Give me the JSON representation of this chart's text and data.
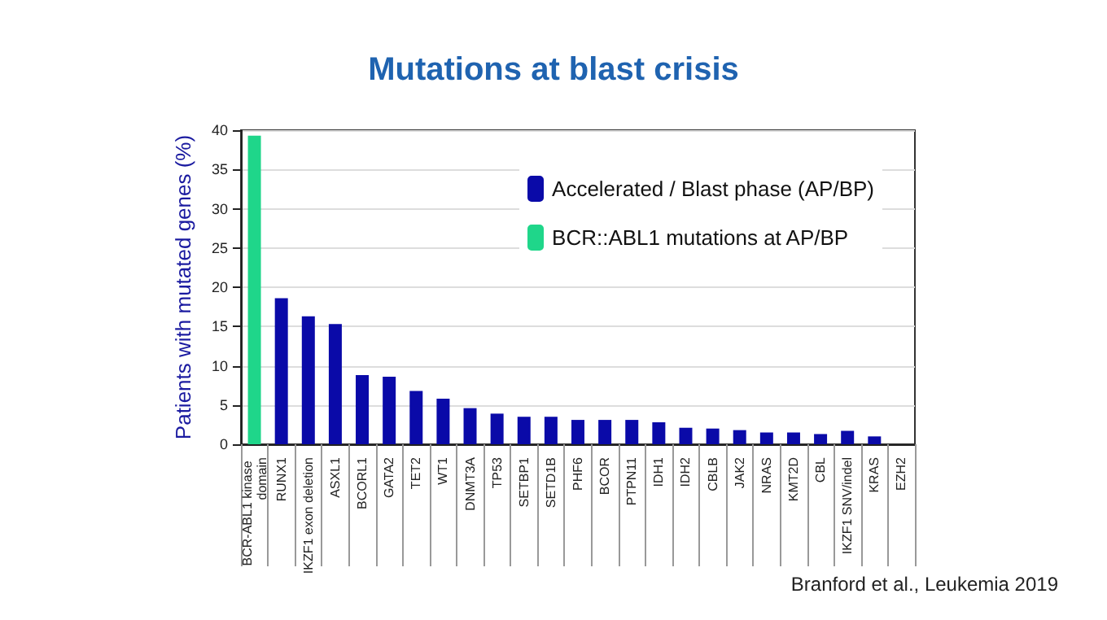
{
  "chart_data": {
    "type": "bar",
    "title": "Mutations at blast crisis",
    "ylabel": "Patients with mutated genes (%)",
    "categories": [
      "BCR-ABL1 kinase domain",
      "RUNX1",
      "IKZF1 exon deletion",
      "ASXL1",
      "BCORL1",
      "GATA2",
      "TET2",
      "WT1",
      "DNMT3A",
      "TP53",
      "SETBP1",
      "SETD1B",
      "PHF6",
      "BCOR",
      "PTPN11",
      "IDH1",
      "IDH2",
      "CBLB",
      "JAK2",
      "NRAS",
      "KMT2D",
      "CBL",
      "IKZF1 SNV/indel",
      "KRAS",
      "EZH2"
    ],
    "series": [
      {
        "name": "Accelerated / Blast phase (AP/BP)",
        "color": "#0a0aa8",
        "values": [
          null,
          18.6,
          16.3,
          15.3,
          8.8,
          8.6,
          6.8,
          5.8,
          4.6,
          3.9,
          3.5,
          3.5,
          3.1,
          3.1,
          3.1,
          2.8,
          2.1,
          2.0,
          1.8,
          1.5,
          1.5,
          1.3,
          1.7,
          1.0,
          0
        ]
      },
      {
        "name": "BCR::ABL1 mutations at AP/BP",
        "color": "#1fd68a",
        "values": [
          39.3,
          null,
          null,
          null,
          null,
          null,
          null,
          null,
          null,
          null,
          null,
          null,
          null,
          null,
          null,
          null,
          null,
          null,
          null,
          null,
          null,
          null,
          null,
          null,
          null
        ]
      }
    ],
    "ylim": [
      0,
      40
    ],
    "yticks": [
      0,
      5,
      10,
      15,
      20,
      25,
      30,
      35,
      40
    ],
    "grid": "y",
    "legend": "top right",
    "annotations": [
      "Branford et al., Leukemia 2019"
    ]
  }
}
